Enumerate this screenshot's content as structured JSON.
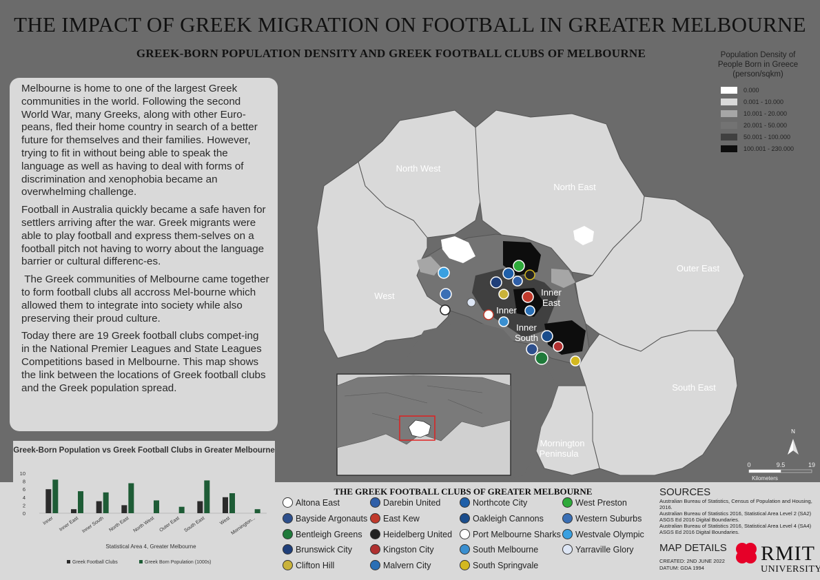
{
  "title": "THE IMPACT OF GREEK MIGRATION ON FOOTBALL IN GREATER MELBOURNE",
  "subtitle": "GREEK-BORN POPULATION DENSITY AND GREEK FOOTBALL CLUBS OF MELBOURNE",
  "intro": {
    "p1": "Melbourne is home to one of the largest Greek communities in the world. Following the second World War, many Greeks, along with other Euro-peans, fled their home country in search of a better future for themselves and their families. However, trying to fit in without being able to speak the language as well as having to deal with forms of discrimination and xenophobia became an overwhelming challenge.",
    "p2": "Football in Australia quickly became a safe haven for settlers arriving after the war. Greek migrants were able to play football and express them-selves on a football pitch not having to worry about the language barrier or cultural differenc-es.",
    "p3": " The Greek communities of Melbourne came together to form football clubs all accross Mel-bourne which allowed them to integrate into society while also preserving their proud culture.",
    "p4": "Today there are 19 Greek football clubs compet-ing in the National Premier Leagues and State Leagues Competitions based in Melbourne. This map shows the link between the locations of Greek football clubs and the Greek population spread."
  },
  "legend": {
    "title": "Population Density of People Born in Greece (person/sqkm)",
    "classes": [
      {
        "label": "0.000",
        "color": "#ffffff"
      },
      {
        "label": "0.001 - 10.000",
        "color": "#d9d9d9"
      },
      {
        "label": "10.001 - 20.000",
        "color": "#a6a6a6"
      },
      {
        "label": "20.001 - 50.000",
        "color": "#737373"
      },
      {
        "label": "50.001 - 100.000",
        "color": "#404040"
      },
      {
        "label": "100.001 - 230.000",
        "color": "#0d0d0d"
      }
    ]
  },
  "regions": {
    "north_west": "North West",
    "north_east": "North East",
    "west": "West",
    "inner": "Inner",
    "inner_east_1": "Inner",
    "inner_east_2": "East",
    "inner_south_1": "Inner",
    "inner_south_2": "South",
    "outer_east": "Outer East",
    "south_east": "South East",
    "mornington_1": "Mornington",
    "mornington_2": "Peninsula"
  },
  "scale": {
    "t0": "0",
    "t1": "9.5",
    "t2": "19",
    "unit": "Kilometers",
    "north": "N"
  },
  "chart_data": {
    "type": "bar",
    "title": "Greek-Born Population vs Greek Football Clubs in Greater Melbourne",
    "xlabel": "Statistical Area 4, Greater Melbourne",
    "ylabel": "",
    "ylim": [
      0,
      10
    ],
    "yticks": [
      "0",
      "2",
      "4",
      "6",
      "8",
      "10"
    ],
    "categories": [
      "Inner",
      "Inner East",
      "Inner South",
      "North East",
      "North West",
      "Outer East",
      "South East",
      "West",
      "Mornington..."
    ],
    "series": [
      {
        "name": "Greek Football Clubs",
        "color": "#2b2b2b",
        "values": [
          6,
          1,
          3,
          2,
          0,
          0,
          3,
          4,
          0
        ]
      },
      {
        "name": "Greek Born Population (1000s)",
        "color": "#1e5c36",
        "values": [
          8.4,
          5.5,
          5.2,
          7.5,
          3.2,
          1.6,
          8.2,
          5.0,
          1.0
        ]
      }
    ],
    "legend_position": "bottom"
  },
  "clubs_title": "THE GREEK FOOTBALL CLUBS OF GREATER MELBOURNE",
  "clubs": [
    {
      "name": "Altona East",
      "color": "#ffffff"
    },
    {
      "name": "Bayside Argonauts",
      "color": "#2d4f8c"
    },
    {
      "name": "Bentleigh Greens",
      "color": "#1f7a3a"
    },
    {
      "name": "Brunswick City",
      "color": "#1f3f7a"
    },
    {
      "name": "Clifton Hill",
      "color": "#c9b23a"
    },
    {
      "name": "Darebin United",
      "color": "#2f5fa8"
    },
    {
      "name": "East Kew",
      "color": "#c0392b"
    },
    {
      "name": "Heidelberg United",
      "color": "#222222"
    },
    {
      "name": "Kingston City",
      "color": "#b03030"
    },
    {
      "name": "Malvern City",
      "color": "#2a6fb5"
    },
    {
      "name": "Northcote City",
      "color": "#1f5fa8"
    },
    {
      "name": "Oakleigh Cannons",
      "color": "#1a4d8c"
    },
    {
      "name": "Port Melbourne Sharks",
      "color": "#ffffff"
    },
    {
      "name": "South Melbourne",
      "color": "#3a8fd0"
    },
    {
      "name": "South Springvale",
      "color": "#d4b820"
    },
    {
      "name": "West Preston",
      "color": "#2eaa3a"
    },
    {
      "name": "Western Suburbs",
      "color": "#3a6fb5"
    },
    {
      "name": "Westvale Olympic",
      "color": "#3aa0e0"
    },
    {
      "name": "Yarraville Glory",
      "color": "#dde6f5"
    }
  ],
  "sources": {
    "title": "SOURCES",
    "s1": "Australian Bureau of Statistics, Census of Population and Housing, 2016.",
    "s2": "Australian Bureau of Statistics 2016, Statistical Area Level 2 (SA2) ASGS Ed 2016 Digital Boundaries.",
    "s3": "Australian Bureau of Statistics 2016, Statistical Area Level 4 (SA4) ASGS Ed 2016 Digital Boundaries."
  },
  "map_details": {
    "title": "MAP DETAILS",
    "created": "CREATED: 2ND JUNE 2022",
    "datum": "DATUM: GDA 1994"
  },
  "logo": {
    "name": "RMIT",
    "sub": "UNIVERSITY"
  }
}
